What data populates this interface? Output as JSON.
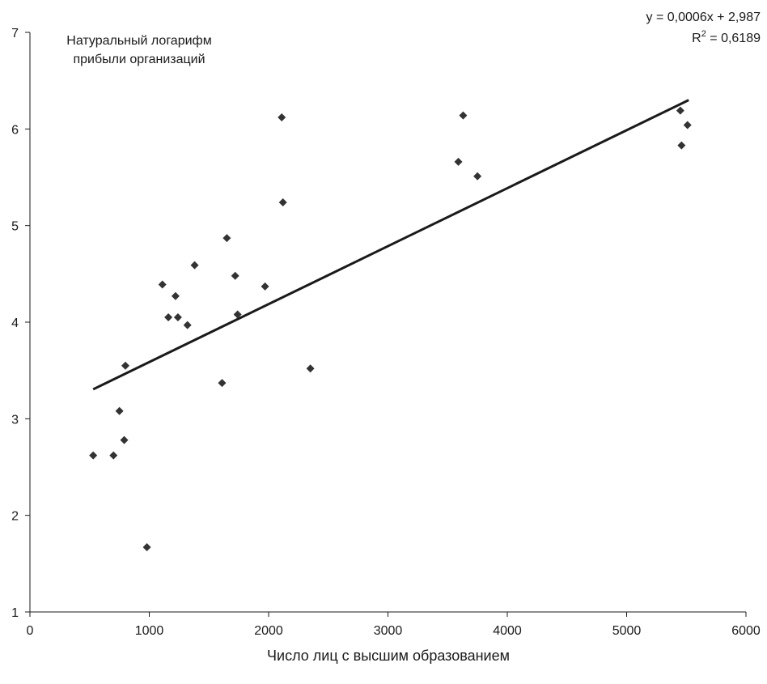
{
  "chart_data": {
    "type": "scatter",
    "xlabel": "Число лиц с высшим образованием",
    "ylabel_lines": [
      "Натуральный логарифм",
      "прибыли организаций"
    ],
    "xlim": [
      0,
      6000
    ],
    "ylim": [
      1,
      7
    ],
    "x_ticks": [
      "0",
      "1000",
      "2000",
      "3000",
      "4000",
      "5000",
      "6000"
    ],
    "y_ticks": [
      "1",
      "2",
      "3",
      "4",
      "5",
      "6",
      "7"
    ],
    "grid": false,
    "marker": "diamond",
    "marker_color": "#333333",
    "trendline": {
      "slope": 0.0006,
      "intercept": 2.987,
      "x_range": [
        530,
        5520
      ],
      "equation_label": "y = 0,0006x + 2,987",
      "r2_prefix": "R",
      "r2_superscript": "2",
      "r2_value": " = 0,6189"
    },
    "points": [
      {
        "x": 530,
        "y": 2.62
      },
      {
        "x": 700,
        "y": 2.62
      },
      {
        "x": 750,
        "y": 3.08
      },
      {
        "x": 790,
        "y": 2.78
      },
      {
        "x": 800,
        "y": 3.55
      },
      {
        "x": 980,
        "y": 1.67
      },
      {
        "x": 1110,
        "y": 4.39
      },
      {
        "x": 1160,
        "y": 4.05
      },
      {
        "x": 1220,
        "y": 4.27
      },
      {
        "x": 1240,
        "y": 4.05
      },
      {
        "x": 1320,
        "y": 3.97
      },
      {
        "x": 1380,
        "y": 4.59
      },
      {
        "x": 1610,
        "y": 3.37
      },
      {
        "x": 1650,
        "y": 4.87
      },
      {
        "x": 1720,
        "y": 4.48
      },
      {
        "x": 1740,
        "y": 4.08
      },
      {
        "x": 1970,
        "y": 4.37
      },
      {
        "x": 2110,
        "y": 6.12
      },
      {
        "x": 2120,
        "y": 5.24
      },
      {
        "x": 2350,
        "y": 3.52
      },
      {
        "x": 3590,
        "y": 5.66
      },
      {
        "x": 3630,
        "y": 6.14
      },
      {
        "x": 3750,
        "y": 5.51
      },
      {
        "x": 5450,
        "y": 6.19
      },
      {
        "x": 5460,
        "y": 5.83
      },
      {
        "x": 5510,
        "y": 6.04
      }
    ]
  }
}
